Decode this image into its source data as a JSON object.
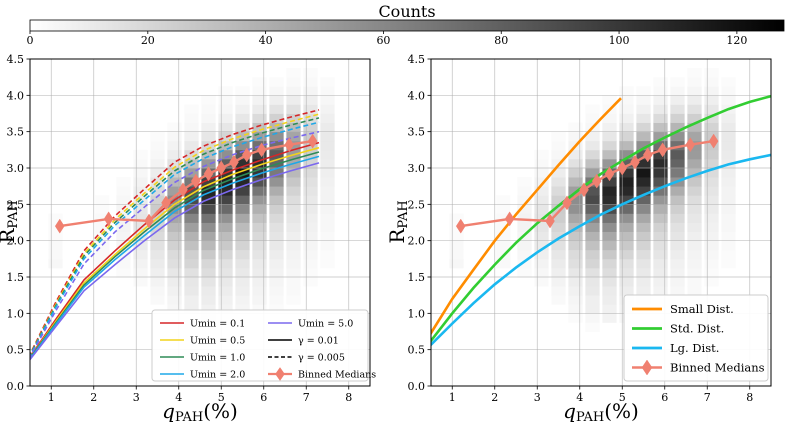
{
  "colorbar": {
    "label": "Counts",
    "ticks": [
      0,
      20,
      40,
      60,
      80,
      100,
      120
    ],
    "min": 0,
    "max": 128
  },
  "chart_data": [
    {
      "type": "line",
      "panel": "left",
      "xlabel": "qPAH(%)",
      "ylabel": "RPAH",
      "xlim": [
        0.5,
        8.5
      ],
      "ylim": [
        0.0,
        4.5
      ],
      "xticks": [
        1,
        2,
        3,
        4,
        5,
        6,
        7,
        8
      ],
      "yticks": [
        "0.0",
        "0.5",
        "1.0",
        "1.5",
        "2.0",
        "2.5",
        "3.0",
        "3.5",
        "4.0",
        "4.5"
      ],
      "x": [
        0.47,
        1.12,
        1.77,
        2.5,
        3.19,
        3.9,
        4.58,
        5.26,
        5.95,
        6.63,
        7.3
      ],
      "series": [
        {
          "name": "Umin = 0.1",
          "color": "#d62728",
          "gamma": "0.01",
          "values": [
            0.37,
            0.93,
            1.46,
            1.86,
            2.22,
            2.56,
            2.81,
            2.97,
            3.11,
            3.24,
            3.35
          ]
        },
        {
          "name": "Umin = 0.5",
          "color": "#f2d31b",
          "gamma": "0.01",
          "values": [
            0.36,
            0.9,
            1.42,
            1.81,
            2.16,
            2.5,
            2.74,
            2.91,
            3.05,
            3.17,
            3.28
          ]
        },
        {
          "name": "Umin = 1.0",
          "color": "#2e8b57",
          "gamma": "0.01",
          "values": [
            0.36,
            0.88,
            1.39,
            1.78,
            2.12,
            2.45,
            2.69,
            2.85,
            2.99,
            3.11,
            3.22
          ]
        },
        {
          "name": "Umin = 2.0",
          "color": "#1ea8e8",
          "gamma": "0.01",
          "values": [
            0.35,
            0.86,
            1.36,
            1.74,
            2.07,
            2.4,
            2.63,
            2.79,
            2.93,
            3.05,
            3.16
          ]
        },
        {
          "name": "Umin = 5.0",
          "color": "#7b68ee",
          "gamma": "0.01",
          "values": [
            0.34,
            0.83,
            1.31,
            1.67,
            2.0,
            2.31,
            2.54,
            2.7,
            2.84,
            2.96,
            3.07
          ]
        },
        {
          "name": "Umin = 0.1",
          "color": "#d62728",
          "gamma": "0.005",
          "values": [
            0.4,
            1.17,
            1.86,
            2.34,
            2.71,
            3.08,
            3.3,
            3.46,
            3.59,
            3.7,
            3.8
          ]
        },
        {
          "name": "Umin = 0.5",
          "color": "#f2d31b",
          "gamma": "0.005",
          "values": [
            0.39,
            1.14,
            1.82,
            2.29,
            2.65,
            3.01,
            3.24,
            3.4,
            3.53,
            3.64,
            3.74
          ]
        },
        {
          "name": "Umin = 1.0",
          "color": "#2e8b57",
          "gamma": "0.005",
          "values": [
            0.39,
            1.12,
            1.79,
            2.25,
            2.61,
            2.96,
            3.19,
            3.35,
            3.48,
            3.59,
            3.69
          ]
        },
        {
          "name": "Umin = 2.0",
          "color": "#1ea8e8",
          "gamma": "0.005",
          "values": [
            0.38,
            1.1,
            1.75,
            2.21,
            2.56,
            2.91,
            3.13,
            3.29,
            3.42,
            3.53,
            3.63
          ]
        },
        {
          "name": "Umin = 5.0",
          "color": "#7b68ee",
          "gamma": "0.005",
          "values": [
            0.37,
            1.05,
            1.68,
            2.12,
            2.46,
            2.8,
            3.02,
            3.18,
            3.31,
            3.41,
            3.5
          ]
        }
      ],
      "legend": {
        "placement": "lower-right",
        "entries": [
          {
            "label": "Umin = 0.1",
            "color": "#d62728",
            "style": "solid"
          },
          {
            "label": "Umin = 5.0",
            "color": "#7b68ee",
            "style": "solid"
          },
          {
            "label": "Umin = 0.5",
            "color": "#f2d31b",
            "style": "solid"
          },
          {
            "label": "γ = 0.01",
            "color": "#000000",
            "style": "solid"
          },
          {
            "label": "Umin = 1.0",
            "color": "#2e8b57",
            "style": "solid"
          },
          {
            "label": "γ = 0.005",
            "color": "#000000",
            "style": "dashed"
          },
          {
            "label": "Umin = 2.0",
            "color": "#1ea8e8",
            "style": "solid"
          },
          {
            "label": "Binned Medians",
            "color": "#f08070",
            "style": "marker"
          }
        ]
      }
    },
    {
      "type": "line",
      "panel": "right",
      "xlabel": "qPAH(%)",
      "ylabel": "RPAH",
      "xlim": [
        0.5,
        8.5
      ],
      "ylim": [
        0.0,
        4.5
      ],
      "xticks": [
        1,
        2,
        3,
        4,
        5,
        6,
        7,
        8
      ],
      "yticks": [
        "0.0",
        "0.5",
        "1.0",
        "1.5",
        "2.0",
        "2.5",
        "3.0",
        "3.5",
        "4.0",
        "4.5"
      ],
      "series": [
        {
          "name": "Small Dist.",
          "color": "#ff8c00",
          "x": [
            0.47,
            1.0,
            1.5,
            2.0,
            2.5,
            3.0,
            3.5,
            4.0,
            4.5,
            4.97
          ],
          "values": [
            0.7,
            1.2,
            1.6,
            2.0,
            2.36,
            2.7,
            3.04,
            3.37,
            3.68,
            3.96
          ]
        },
        {
          "name": "Std. Dist.",
          "color": "#32cd32",
          "x": [
            0.47,
            1.0,
            1.5,
            2.0,
            2.5,
            3.0,
            3.5,
            4.0,
            4.5,
            5.0,
            5.5,
            6.0,
            6.5,
            7.0,
            7.5,
            8.0,
            8.5
          ],
          "values": [
            0.6,
            1.0,
            1.35,
            1.67,
            1.97,
            2.24,
            2.48,
            2.71,
            2.92,
            3.1,
            3.27,
            3.42,
            3.56,
            3.69,
            3.81,
            3.91,
            3.99
          ]
        },
        {
          "name": "Lg. Dist.",
          "color": "#1ab8f0",
          "x": [
            0.47,
            1.0,
            1.5,
            2.0,
            2.5,
            3.0,
            3.5,
            4.0,
            4.5,
            5.0,
            5.5,
            6.0,
            6.5,
            7.0,
            7.5,
            8.0,
            8.5
          ],
          "values": [
            0.55,
            0.86,
            1.14,
            1.4,
            1.63,
            1.84,
            2.03,
            2.2,
            2.36,
            2.5,
            2.63,
            2.75,
            2.86,
            2.96,
            3.05,
            3.12,
            3.18
          ]
        }
      ],
      "legend": {
        "placement": "lower-right",
        "entries": [
          {
            "label": "Small Dist.",
            "color": "#ff8c00",
            "style": "solid"
          },
          {
            "label": "Std. Dist.",
            "color": "#32cd32",
            "style": "solid"
          },
          {
            "label": "Lg. Dist.",
            "color": "#1ab8f0",
            "style": "solid"
          },
          {
            "label": "Binned Medians",
            "color": "#f08070",
            "style": "marker"
          }
        ]
      }
    }
  ],
  "binned_medians": {
    "name": "Binned Medians",
    "color": "#f08070",
    "x": [
      1.2,
      2.35,
      3.3,
      3.7,
      4.1,
      4.4,
      4.7,
      5.0,
      5.3,
      5.6,
      5.95,
      6.6,
      7.15
    ],
    "y": [
      2.2,
      2.3,
      2.27,
      2.52,
      2.7,
      2.82,
      2.92,
      3.0,
      3.08,
      3.18,
      3.25,
      3.32,
      3.37
    ]
  },
  "histogram": {
    "x_centers": [
      1.1,
      2.2,
      2.7,
      3.1,
      3.5,
      3.9,
      4.3,
      4.7,
      5.1,
      5.5,
      5.9,
      6.3,
      6.7,
      7.1,
      7.5
    ],
    "x_width": 0.4,
    "y_bottom": 0.0,
    "y_height": 0.125,
    "rows": [
      [
        0,
        0,
        0,
        0,
        0,
        0,
        0,
        0,
        0,
        0,
        0,
        0,
        0,
        0,
        0
      ],
      [
        0,
        0,
        0,
        0,
        0,
        0,
        0,
        0,
        0,
        0,
        0,
        0,
        0,
        0,
        0
      ],
      [
        0,
        0,
        0,
        0,
        0,
        0,
        0,
        0,
        0,
        0,
        0,
        0,
        0,
        0,
        0
      ],
      [
        0,
        0,
        0,
        0,
        0,
        0,
        0,
        0,
        0,
        0,
        0,
        0,
        0,
        0,
        0
      ],
      [
        0,
        0,
        0,
        0,
        0,
        0,
        0,
        0,
        0,
        0,
        0,
        0,
        0,
        0,
        0
      ],
      [
        0,
        0,
        0,
        0,
        0,
        0,
        0,
        0,
        0,
        0,
        0,
        0,
        0,
        0,
        0
      ],
      [
        0,
        0,
        0,
        0,
        0,
        0,
        2,
        0,
        0,
        0,
        0,
        0,
        0,
        0,
        0
      ],
      [
        0,
        0,
        0,
        0,
        0,
        2,
        4,
        6,
        4,
        3,
        2,
        0,
        0,
        0,
        0
      ],
      [
        0,
        0,
        0,
        0,
        0,
        4,
        8,
        7,
        6,
        5,
        3,
        2,
        0,
        0,
        0
      ],
      [
        0,
        0,
        0,
        0,
        3,
        5,
        8,
        9,
        7,
        6,
        5,
        3,
        2,
        0,
        0
      ],
      [
        0,
        0,
        0,
        0,
        4,
        7,
        11,
        10,
        9,
        8,
        6,
        4,
        3,
        0,
        0
      ],
      [
        0,
        0,
        0,
        3,
        6,
        9,
        12,
        13,
        11,
        9,
        7,
        5,
        3,
        2,
        0
      ],
      [
        0,
        0,
        2,
        4,
        8,
        12,
        15,
        17,
        13,
        11,
        9,
        6,
        4,
        2,
        0
      ],
      [
        4,
        3,
        3,
        6,
        10,
        16,
        21,
        20,
        15,
        13,
        10,
        7,
        5,
        3,
        2
      ],
      [
        3,
        3,
        4,
        8,
        12,
        18,
        24,
        27,
        21,
        17,
        13,
        9,
        6,
        4,
        2
      ],
      [
        3,
        3,
        5,
        10,
        15,
        23,
        31,
        35,
        27,
        22,
        15,
        11,
        7,
        5,
        3
      ],
      [
        2,
        3,
        5,
        11,
        18,
        28,
        38,
        44,
        33,
        27,
        19,
        13,
        8,
        6,
        3
      ],
      [
        2,
        3,
        6,
        13,
        21,
        35,
        48,
        56,
        42,
        34,
        23,
        15,
        10,
        7,
        4
      ],
      [
        2,
        3,
        6,
        13,
        25,
        44,
        61,
        71,
        55,
        44,
        30,
        19,
        12,
        8,
        4
      ],
      [
        0,
        2,
        5,
        12,
        26,
        55,
        78,
        90,
        75,
        59,
        39,
        24,
        14,
        10,
        5
      ],
      [
        0,
        2,
        4,
        10,
        23,
        57,
        91,
        106,
        94,
        78,
        52,
        31,
        17,
        11,
        6
      ],
      [
        0,
        0,
        3,
        8,
        18,
        48,
        86,
        110,
        108,
        95,
        69,
        41,
        22,
        13,
        6
      ],
      [
        0,
        0,
        2,
        6,
        13,
        35,
        68,
        96,
        112,
        108,
        87,
        54,
        28,
        15,
        7
      ],
      [
        0,
        0,
        0,
        4,
        9,
        24,
        48,
        75,
        101,
        117,
        101,
        67,
        35,
        18,
        8
      ],
      [
        0,
        0,
        0,
        3,
        6,
        15,
        31,
        52,
        80,
        104,
        106,
        78,
        43,
        21,
        9
      ],
      [
        0,
        0,
        0,
        2,
        4,
        9,
        19,
        33,
        56,
        82,
        95,
        83,
        50,
        25,
        10
      ],
      [
        0,
        0,
        0,
        0,
        3,
        6,
        11,
        20,
        35,
        56,
        72,
        72,
        51,
        27,
        11
      ],
      [
        0,
        0,
        0,
        0,
        2,
        4,
        7,
        12,
        21,
        35,
        49,
        55,
        45,
        26,
        11
      ],
      [
        0,
        0,
        0,
        0,
        0,
        2,
        4,
        7,
        12,
        21,
        31,
        37,
        35,
        22,
        10
      ],
      [
        0,
        0,
        0,
        0,
        0,
        0,
        3,
        4,
        7,
        12,
        18,
        23,
        24,
        17,
        8
      ],
      [
        0,
        0,
        0,
        0,
        0,
        0,
        2,
        3,
        4,
        7,
        10,
        14,
        15,
        12,
        6
      ],
      [
        0,
        0,
        0,
        0,
        0,
        0,
        0,
        2,
        3,
        4,
        6,
        8,
        9,
        8,
        4
      ],
      [
        0,
        0,
        0,
        0,
        0,
        0,
        0,
        0,
        2,
        2,
        3,
        4,
        5,
        5,
        3
      ],
      [
        0,
        0,
        0,
        0,
        0,
        0,
        0,
        0,
        0,
        0,
        2,
        2,
        3,
        3,
        2
      ],
      [
        0,
        0,
        0,
        0,
        0,
        0,
        0,
        0,
        0,
        0,
        0,
        0,
        2,
        2,
        0
      ],
      [
        0,
        0,
        0,
        0,
        0,
        0,
        0,
        0,
        0,
        0,
        0,
        0,
        0,
        0,
        0
      ]
    ]
  }
}
